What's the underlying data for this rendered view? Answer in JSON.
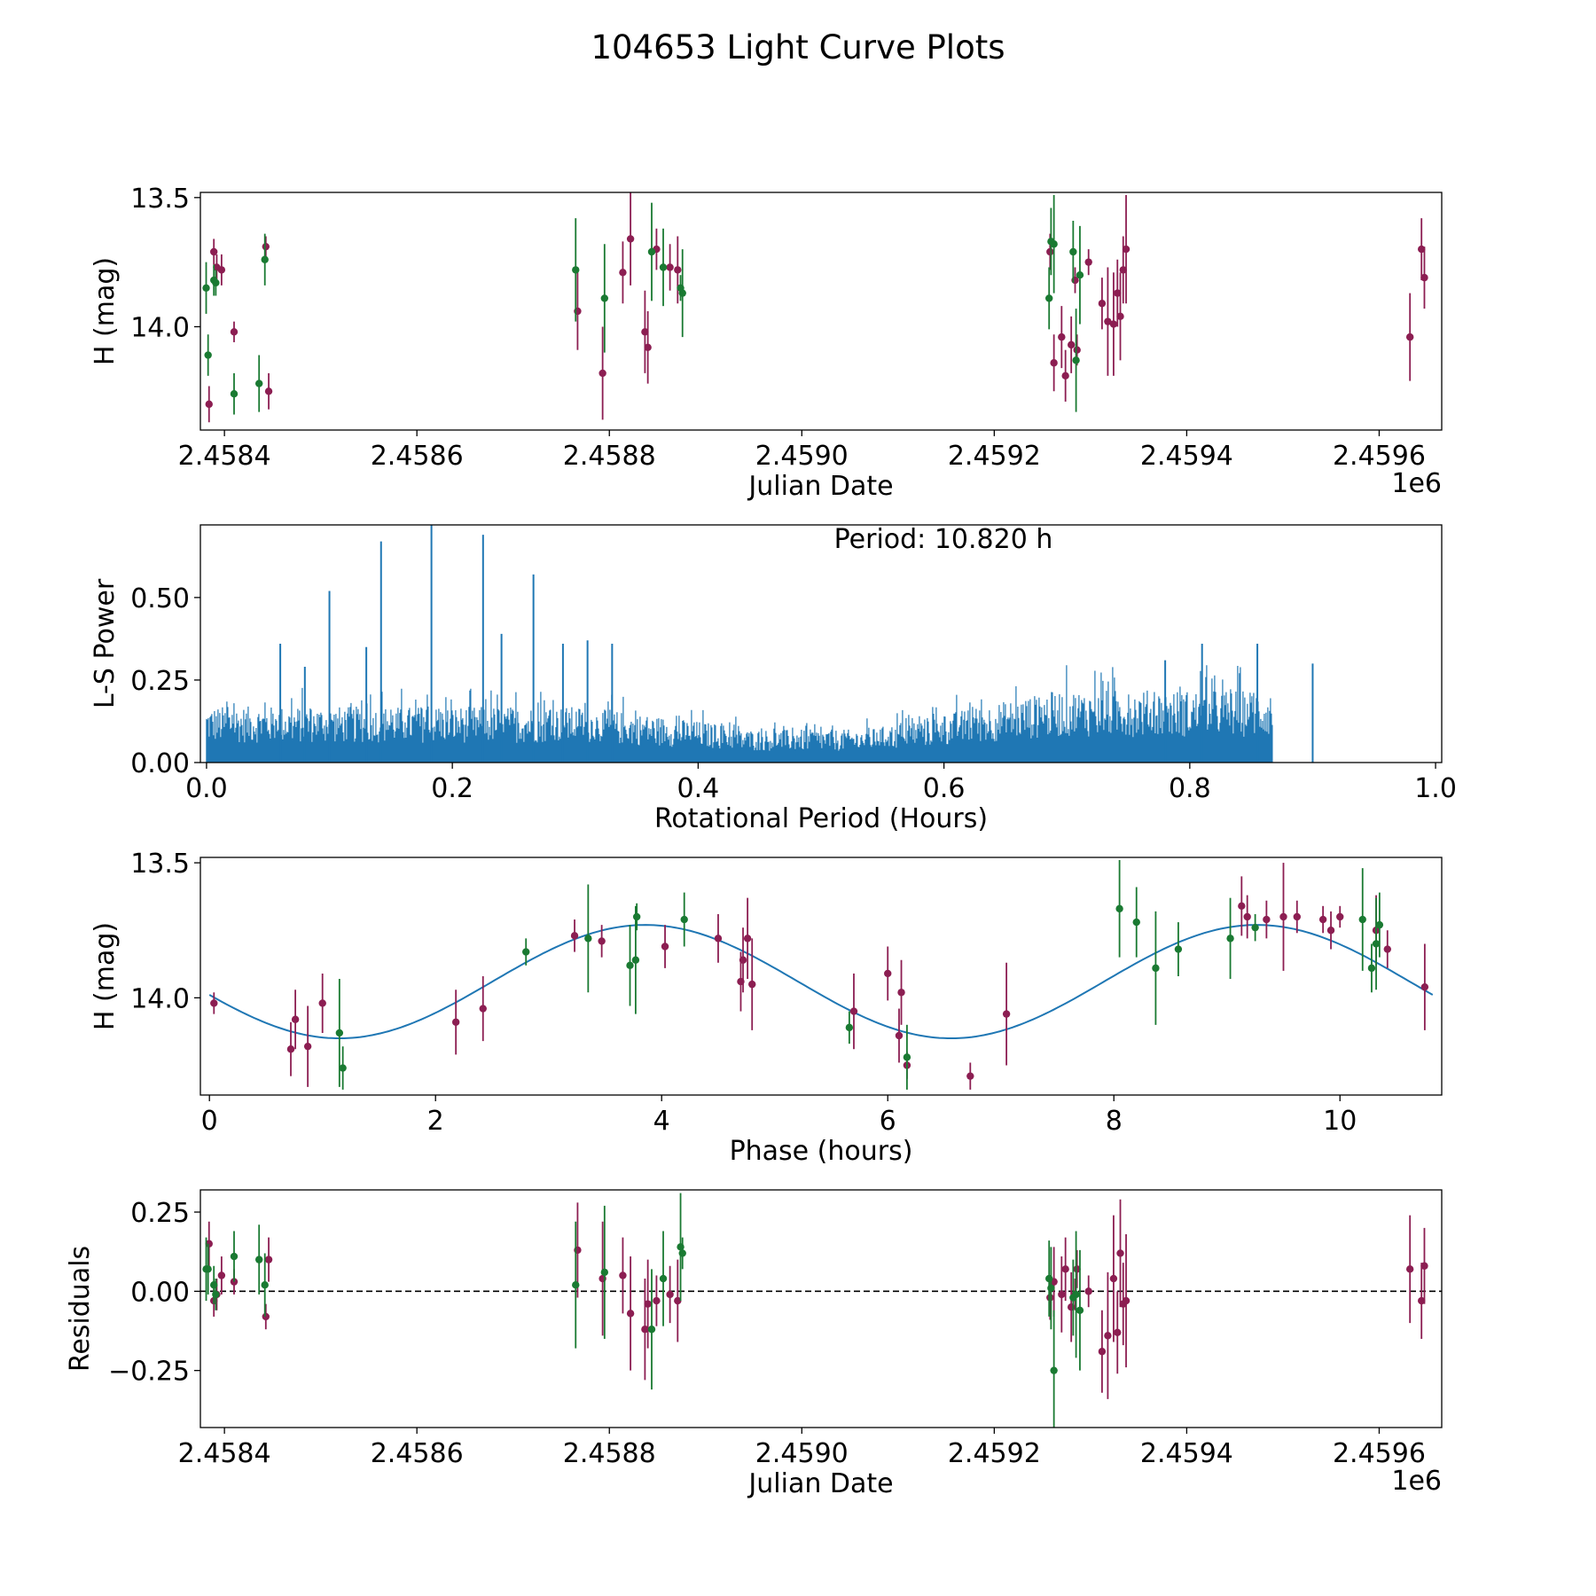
{
  "figure": {
    "title": "104653 Light Curve Plots"
  },
  "colors": {
    "band_r": "#8c1e52",
    "band_g": "#1a7a32",
    "periodogram": "#1f77b4",
    "fit": "#1f77b4",
    "zero_line": "#000000"
  },
  "chart_data": [
    {
      "id": "lc",
      "type": "scatter",
      "title": "",
      "xlabel": "Julian Date",
      "ylabel": "H (mag)",
      "x_offset_label": "1e6",
      "xlim": [
        2458375,
        2459665
      ],
      "ylim": [
        14.4,
        13.48
      ],
      "xticks": [
        2458400,
        2458600,
        2458800,
        2459000,
        2459200,
        2459400,
        2459600
      ],
      "xtick_labels": [
        "2.4584",
        "2.4586",
        "2.4588",
        "2.4590",
        "2.4592",
        "2.4594",
        "2.4596"
      ],
      "yticks": [
        14.0,
        13.5
      ],
      "ytick_labels": [
        "14.0",
        "13.5"
      ],
      "series": [
        {
          "name": "band r",
          "color": "#8c1e52",
          "points": [
            [
              2458384,
              14.3,
              0.07
            ],
            [
              2458389,
              13.71,
              0.05
            ],
            [
              2458392,
              13.77,
              0.05
            ],
            [
              2458397,
              13.78,
              0.06
            ],
            [
              2458410,
              14.02,
              0.04
            ],
            [
              2458443,
              13.69,
              0.04
            ],
            [
              2458446,
              14.25,
              0.07
            ],
            [
              2458767,
              13.94,
              0.15
            ],
            [
              2458793,
              14.18,
              0.18
            ],
            [
              2458814,
              13.79,
              0.12
            ],
            [
              2458822,
              13.66,
              0.18
            ],
            [
              2458837,
              14.02,
              0.16
            ],
            [
              2458840,
              14.08,
              0.14
            ],
            [
              2458849,
              13.7,
              0.08
            ],
            [
              2458863,
              13.77,
              0.09
            ],
            [
              2458871,
              13.78,
              0.13
            ],
            [
              2459258,
              13.71,
              0.07
            ],
            [
              2459262,
              14.14,
              0.11
            ],
            [
              2459270,
              14.04,
              0.12
            ],
            [
              2459274,
              14.19,
              0.1
            ],
            [
              2459280,
              14.07,
              0.11
            ],
            [
              2459284,
              13.82,
              0.05
            ],
            [
              2459286,
              14.09,
              0.06
            ],
            [
              2459298,
              13.75,
              0.05
            ],
            [
              2459312,
              13.91,
              0.1
            ],
            [
              2459318,
              13.98,
              0.21
            ],
            [
              2459324,
              13.99,
              0.2
            ],
            [
              2459328,
              13.87,
              0.13
            ],
            [
              2459331,
              13.96,
              0.17
            ],
            [
              2459334,
              13.78,
              0.13
            ],
            [
              2459337,
              13.7,
              0.21
            ],
            [
              2459632,
              14.04,
              0.17
            ],
            [
              2459644,
              13.7,
              0.12
            ],
            [
              2459647,
              13.81,
              0.12
            ]
          ]
        },
        {
          "name": "band g",
          "color": "#1a7a32",
          "points": [
            [
              2458381,
              13.85,
              0.1
            ],
            [
              2458383,
              14.11,
              0.08
            ],
            [
              2458389,
              13.82,
              0.06
            ],
            [
              2458391,
              13.83,
              0.05
            ],
            [
              2458410,
              14.26,
              0.08
            ],
            [
              2458436,
              14.22,
              0.11
            ],
            [
              2458442,
              13.74,
              0.1
            ],
            [
              2458765,
              13.78,
              0.2
            ],
            [
              2458795,
              13.89,
              0.21
            ],
            [
              2458844,
              13.71,
              0.19
            ],
            [
              2458856,
              13.77,
              0.15
            ],
            [
              2458874,
              13.85,
              0.05
            ],
            [
              2458876,
              13.87,
              0.17
            ],
            [
              2459257,
              13.89,
              0.12
            ],
            [
              2459259,
              13.67,
              0.13
            ],
            [
              2459262,
              13.68,
              0.19
            ],
            [
              2459282,
              13.71,
              0.12
            ],
            [
              2459285,
              14.13,
              0.2
            ],
            [
              2459289,
              13.8,
              0.19
            ]
          ]
        }
      ]
    },
    {
      "id": "ls",
      "type": "line",
      "title": "",
      "xlabel": "Rotational Period (Hours)",
      "ylabel": "L-S Power",
      "annotation": "Period: 10.820 h",
      "xlim": [
        -0.005,
        1.005
      ],
      "ylim": [
        0,
        0.72
      ],
      "xticks": [
        0.0,
        0.2,
        0.4,
        0.6,
        0.8,
        1.0
      ],
      "xtick_labels": [
        "0.0",
        "0.2",
        "0.4",
        "0.6",
        "0.8",
        "1.0"
      ],
      "yticks": [
        0.0,
        0.25,
        0.5
      ],
      "ytick_labels": [
        "0.00",
        "0.25",
        "0.50"
      ],
      "peaks": [
        [
          0.06,
          0.36
        ],
        [
          0.1,
          0.52
        ],
        [
          0.142,
          0.67
        ],
        [
          0.183,
          0.72
        ],
        [
          0.225,
          0.69
        ],
        [
          0.24,
          0.39
        ],
        [
          0.266,
          0.57
        ],
        [
          0.29,
          0.36
        ],
        [
          0.31,
          0.37
        ],
        [
          0.33,
          0.36
        ],
        [
          0.13,
          0.35
        ],
        [
          0.08,
          0.29
        ],
        [
          0.81,
          0.36
        ],
        [
          0.855,
          0.36
        ],
        [
          0.78,
          0.31
        ],
        [
          0.9,
          0.3
        ]
      ]
    },
    {
      "id": "phase",
      "type": "scatter",
      "title": "",
      "xlabel": "Phase (hours)",
      "ylabel": "H (mag)",
      "xlim": [
        -0.08,
        10.9
      ],
      "ylim": [
        14.36,
        13.48
      ],
      "xticks": [
        0,
        2,
        4,
        6,
        8,
        10
      ],
      "xtick_labels": [
        "0",
        "2",
        "4",
        "6",
        "8",
        "10"
      ],
      "yticks": [
        14.0,
        13.5
      ],
      "ytick_labels": [
        "14.0",
        "13.5"
      ],
      "fit": {
        "mean": 13.94,
        "amplitude": 0.21,
        "period": 5.41,
        "peak_phase": 1.15,
        "x_range": [
          0,
          10.82
        ]
      },
      "series": [
        {
          "name": "band r",
          "color": "#8c1e52",
          "points": [
            [
              0.04,
              14.02,
              0.04
            ],
            [
              0.72,
              14.19,
              0.1
            ],
            [
              0.76,
              14.08,
              0.11
            ],
            [
              0.87,
              14.18,
              0.15
            ],
            [
              1.0,
              14.02,
              0.11
            ],
            [
              2.18,
              14.09,
              0.12
            ],
            [
              2.42,
              14.04,
              0.12
            ],
            [
              3.23,
              13.77,
              0.06
            ],
            [
              3.47,
              13.79,
              0.06
            ],
            [
              4.03,
              13.81,
              0.08
            ],
            [
              4.5,
              13.78,
              0.09
            ],
            [
              4.7,
              13.94,
              0.11
            ],
            [
              4.72,
              13.86,
              0.12
            ],
            [
              4.76,
              13.78,
              0.15
            ],
            [
              4.8,
              13.95,
              0.17
            ],
            [
              5.7,
              14.05,
              0.14
            ],
            [
              6.0,
              13.91,
              0.1
            ],
            [
              6.1,
              14.14,
              0.1
            ],
            [
              6.12,
              13.98,
              0.12
            ],
            [
              6.17,
              14.25,
              0.05
            ],
            [
              6.73,
              14.29,
              0.05
            ],
            [
              7.05,
              14.06,
              0.19
            ],
            [
              9.13,
              13.66,
              0.11
            ],
            [
              9.18,
              13.7,
              0.08
            ],
            [
              9.35,
              13.71,
              0.07
            ],
            [
              9.5,
              13.7,
              0.2
            ],
            [
              9.62,
              13.7,
              0.06
            ],
            [
              9.85,
              13.71,
              0.05
            ],
            [
              9.92,
              13.75,
              0.07
            ],
            [
              10.0,
              13.7,
              0.04
            ],
            [
              10.32,
              13.75,
              0.13
            ],
            [
              10.42,
              13.82,
              0.07
            ],
            [
              10.75,
              13.96,
              0.16
            ]
          ]
        },
        {
          "name": "band g",
          "color": "#1a7a32",
          "points": [
            [
              1.15,
              14.13,
              0.2
            ],
            [
              1.18,
              14.26,
              0.08
            ],
            [
              2.8,
              13.83,
              0.05
            ],
            [
              3.35,
              13.78,
              0.2
            ],
            [
              3.72,
              13.88,
              0.15
            ],
            [
              3.77,
              13.86,
              0.2
            ],
            [
              3.78,
              13.7,
              0.05
            ],
            [
              4.2,
              13.71,
              0.1
            ],
            [
              5.66,
              14.11,
              0.06
            ],
            [
              6.17,
              14.22,
              0.12
            ],
            [
              8.05,
              13.67,
              0.18
            ],
            [
              8.2,
              13.72,
              0.13
            ],
            [
              8.37,
              13.89,
              0.21
            ],
            [
              8.57,
              13.82,
              0.1
            ],
            [
              9.03,
              13.78,
              0.15
            ],
            [
              9.25,
              13.74,
              0.05
            ],
            [
              10.2,
              13.71,
              0.19
            ],
            [
              10.28,
              13.89,
              0.09
            ],
            [
              10.32,
              13.8,
              0.17
            ],
            [
              10.35,
              13.73,
              0.12
            ]
          ]
        }
      ]
    },
    {
      "id": "res",
      "type": "scatter",
      "title": "",
      "xlabel": "Julian Date",
      "ylabel": "Residuals",
      "x_offset_label": "1e6",
      "xlim": [
        2458375,
        2459665
      ],
      "ylim": [
        -0.43,
        0.32
      ],
      "xticks": [
        2458400,
        2458600,
        2458800,
        2459000,
        2459200,
        2459400,
        2459600
      ],
      "xtick_labels": [
        "2.4584",
        "2.4586",
        "2.4588",
        "2.4590",
        "2.4592",
        "2.4594",
        "2.4596"
      ],
      "yticks": [
        0.25,
        0.0,
        -0.25
      ],
      "ytick_labels": [
        "0.25",
        "0.00",
        "−0.25"
      ],
      "series": [
        {
          "name": "band r",
          "color": "#8c1e52",
          "points": [
            [
              2458384,
              0.15,
              0.07
            ],
            [
              2458389,
              -0.03,
              0.05
            ],
            [
              2458392,
              -0.01,
              0.05
            ],
            [
              2458397,
              0.05,
              0.06
            ],
            [
              2458410,
              0.03,
              0.04
            ],
            [
              2458443,
              -0.08,
              0.04
            ],
            [
              2458446,
              0.1,
              0.07
            ],
            [
              2458767,
              0.13,
              0.15
            ],
            [
              2458793,
              0.04,
              0.18
            ],
            [
              2458814,
              0.05,
              0.12
            ],
            [
              2458822,
              -0.07,
              0.18
            ],
            [
              2458837,
              -0.12,
              0.16
            ],
            [
              2458840,
              -0.04,
              0.14
            ],
            [
              2458849,
              -0.03,
              0.08
            ],
            [
              2458863,
              -0.01,
              0.09
            ],
            [
              2458871,
              -0.03,
              0.13
            ],
            [
              2459258,
              -0.02,
              0.07
            ],
            [
              2459262,
              0.03,
              0.11
            ],
            [
              2459270,
              -0.01,
              0.12
            ],
            [
              2459274,
              0.07,
              0.1
            ],
            [
              2459280,
              -0.05,
              0.11
            ],
            [
              2459284,
              -0.01,
              0.05
            ],
            [
              2459286,
              0.07,
              0.06
            ],
            [
              2459298,
              0.0,
              0.05
            ],
            [
              2459312,
              -0.19,
              0.13
            ],
            [
              2459318,
              -0.14,
              0.2
            ],
            [
              2459324,
              0.04,
              0.2
            ],
            [
              2459328,
              -0.13,
              0.13
            ],
            [
              2459331,
              0.12,
              0.17
            ],
            [
              2459334,
              -0.04,
              0.13
            ],
            [
              2459337,
              -0.03,
              0.21
            ],
            [
              2459632,
              0.07,
              0.17
            ],
            [
              2459644,
              -0.03,
              0.12
            ],
            [
              2459647,
              0.08,
              0.12
            ]
          ]
        },
        {
          "name": "band g",
          "color": "#1a7a32",
          "points": [
            [
              2458381,
              0.07,
              0.1
            ],
            [
              2458383,
              0.07,
              0.08
            ],
            [
              2458389,
              0.02,
              0.06
            ],
            [
              2458391,
              -0.01,
              0.05
            ],
            [
              2458410,
              0.11,
              0.08
            ],
            [
              2458436,
              0.1,
              0.11
            ],
            [
              2458442,
              0.02,
              0.1
            ],
            [
              2458765,
              0.02,
              0.2
            ],
            [
              2458795,
              0.06,
              0.21
            ],
            [
              2458844,
              -0.12,
              0.19
            ],
            [
              2458856,
              0.04,
              0.15
            ],
            [
              2458874,
              0.14,
              0.17
            ],
            [
              2458876,
              0.12,
              0.05
            ],
            [
              2459257,
              0.04,
              0.12
            ],
            [
              2459259,
              0.01,
              0.13
            ],
            [
              2459262,
              -0.25,
              0.19
            ],
            [
              2459282,
              -0.02,
              0.12
            ],
            [
              2459285,
              -0.01,
              0.2
            ],
            [
              2459289,
              -0.06,
              0.19
            ]
          ]
        }
      ]
    }
  ]
}
